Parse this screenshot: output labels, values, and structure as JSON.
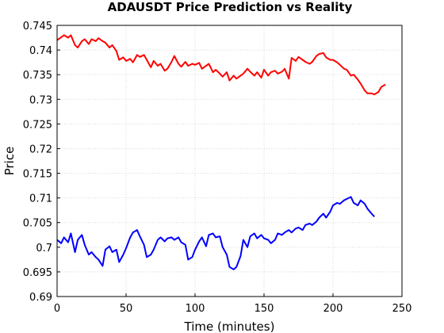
{
  "chart_data": {
    "type": "line",
    "title": "ADAUSDT Price Prediction vs Reality",
    "xlabel": "Time (minutes)",
    "ylabel": "Price",
    "xlim": [
      0,
      250
    ],
    "ylim": [
      0.69,
      0.745
    ],
    "x_ticks": [
      "0",
      "50",
      "100",
      "150",
      "200",
      "250"
    ],
    "y_ticks": [
      "0.69",
      "0.695",
      "0.7",
      "0.705",
      "0.71",
      "0.715",
      "0.72",
      "0.725",
      "0.73",
      "0.735",
      "0.74",
      "0.745"
    ],
    "grid": true,
    "legend": "none",
    "series": [
      {
        "color": "#ff0000",
        "x": [
          0,
          5,
          8,
          10,
          13,
          15,
          18,
          20,
          23,
          25,
          28,
          30,
          33,
          35,
          38,
          40,
          43,
          45,
          48,
          50,
          53,
          55,
          58,
          60,
          63,
          65,
          68,
          70,
          73,
          75,
          78,
          80,
          83,
          85,
          88,
          90,
          93,
          95,
          98,
          100,
          103,
          105,
          108,
          110,
          113,
          115,
          118,
          120,
          123,
          125,
          128,
          130,
          133,
          135,
          138,
          140,
          143,
          145,
          148,
          150,
          153,
          155,
          158,
          160,
          163,
          165,
          168,
          170,
          173,
          175,
          178,
          180,
          183,
          185,
          188,
          190,
          193,
          195,
          198,
          200,
          203,
          205,
          208,
          210,
          213,
          215,
          218,
          220,
          223,
          225,
          228,
          230,
          233,
          235,
          238
        ],
        "values": [
          0.742,
          0.743,
          0.7425,
          0.743,
          0.741,
          0.7405,
          0.7418,
          0.7422,
          0.7412,
          0.7422,
          0.7418,
          0.7424,
          0.7418,
          0.7415,
          0.7405,
          0.741,
          0.7398,
          0.738,
          0.7385,
          0.7378,
          0.7382,
          0.7375,
          0.739,
          0.7386,
          0.739,
          0.738,
          0.7365,
          0.7378,
          0.7368,
          0.7372,
          0.7358,
          0.7362,
          0.7376,
          0.7388,
          0.7372,
          0.7366,
          0.7376,
          0.7368,
          0.7372,
          0.737,
          0.7374,
          0.7362,
          0.7368,
          0.7372,
          0.7355,
          0.736,
          0.7352,
          0.7346,
          0.7355,
          0.7338,
          0.7348,
          0.7342,
          0.7348,
          0.7352,
          0.7362,
          0.7356,
          0.7348,
          0.7355,
          0.7344,
          0.736,
          0.7348,
          0.7355,
          0.7358,
          0.7352,
          0.7356,
          0.7362,
          0.7342,
          0.7384,
          0.7378,
          0.7386,
          0.738,
          0.7376,
          0.7372,
          0.7376,
          0.7388,
          0.7392,
          0.7394,
          0.7385,
          0.738,
          0.738,
          0.7375,
          0.737,
          0.7362,
          0.736,
          0.7348,
          0.735,
          0.734,
          0.7332,
          0.7318,
          0.7312,
          0.7312,
          0.731,
          0.7315,
          0.7325,
          0.733
        ]
      },
      {
        "color": "#0000ff",
        "x": [
          0,
          3,
          5,
          8,
          10,
          13,
          15,
          18,
          20,
          23,
          25,
          28,
          30,
          33,
          35,
          38,
          40,
          43,
          45,
          48,
          50,
          53,
          55,
          58,
          60,
          63,
          65,
          68,
          70,
          73,
          75,
          78,
          80,
          83,
          85,
          88,
          90,
          93,
          95,
          98,
          100,
          103,
          105,
          108,
          110,
          113,
          115,
          118,
          120,
          123,
          125,
          128,
          130,
          133,
          135,
          138,
          140,
          143,
          145,
          148,
          150,
          153,
          155,
          158,
          160,
          163,
          165,
          168,
          170,
          173,
          175,
          178,
          180,
          183,
          185,
          188,
          190,
          193,
          195,
          198,
          200,
          203,
          205,
          208,
          210,
          213,
          215,
          218,
          220,
          223,
          225,
          228,
          230
        ],
        "values": [
          0.7015,
          0.7008,
          0.702,
          0.701,
          0.7028,
          0.699,
          0.7015,
          0.7025,
          0.7005,
          0.6985,
          0.699,
          0.698,
          0.6975,
          0.6962,
          0.6995,
          0.7002,
          0.699,
          0.6995,
          0.697,
          0.6985,
          0.6998,
          0.702,
          0.703,
          0.7035,
          0.7022,
          0.7005,
          0.698,
          0.6985,
          0.6995,
          0.7015,
          0.702,
          0.7012,
          0.7018,
          0.702,
          0.7015,
          0.702,
          0.701,
          0.7005,
          0.6975,
          0.698,
          0.6995,
          0.7012,
          0.702,
          0.7002,
          0.7025,
          0.7028,
          0.702,
          0.7022,
          0.7,
          0.6985,
          0.696,
          0.6955,
          0.696,
          0.6982,
          0.7015,
          0.7,
          0.7022,
          0.7028,
          0.7018,
          0.7025,
          0.7018,
          0.7015,
          0.7008,
          0.7015,
          0.7028,
          0.7025,
          0.703,
          0.7035,
          0.703,
          0.7038,
          0.704,
          0.7035,
          0.7045,
          0.7048,
          0.7045,
          0.7052,
          0.706,
          0.7068,
          0.706,
          0.7072,
          0.7085,
          0.709,
          0.7088,
          0.7095,
          0.7098,
          0.7102,
          0.709,
          0.7085,
          0.7095,
          0.7088,
          0.7078,
          0.7068,
          0.7062
        ]
      }
    ]
  }
}
